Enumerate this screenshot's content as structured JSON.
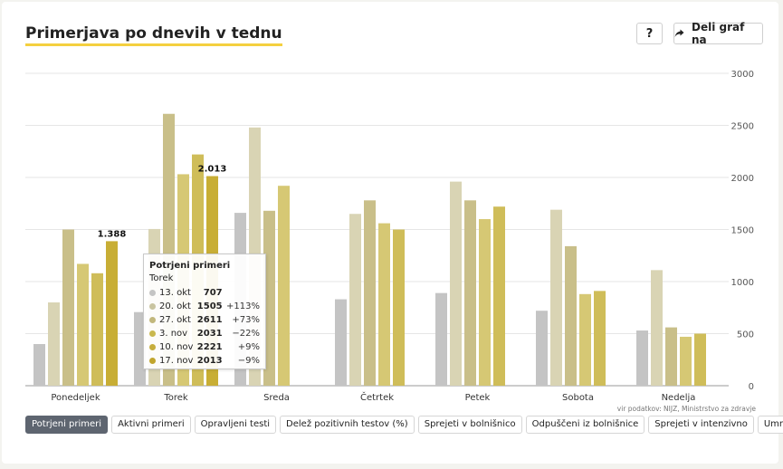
{
  "header": {
    "title": "Primerjava po dnevih v tednu",
    "help_label": "?",
    "share_label": "Deli graf na"
  },
  "source_note": "vir podatkov: NIJZ, Ministrstvo za zdravje",
  "tabs": [
    {
      "label": "Potrjeni primeri",
      "active": true
    },
    {
      "label": "Aktivni primeri",
      "active": false
    },
    {
      "label": "Opravljeni testi",
      "active": false
    },
    {
      "label": "Delež pozitivnih testov (%)",
      "active": false
    },
    {
      "label": "Sprejeti v bolnišnico",
      "active": false
    },
    {
      "label": "Odpuščeni iz bolnišnice",
      "active": false
    },
    {
      "label": "Sprejeti v intenzivno",
      "active": false
    },
    {
      "label": "Umrli",
      "active": false
    }
  ],
  "chart_data": {
    "type": "bar",
    "categories": [
      "Ponedeljek",
      "Torek",
      "Sreda",
      "Četrtek",
      "Petek",
      "Sobota",
      "Nedelja"
    ],
    "ylim": [
      0,
      3000
    ],
    "yticks": [
      "0",
      "500",
      "1000",
      "1500",
      "2000",
      "2500",
      "3000"
    ],
    "grid": true,
    "y_axis_side": "right",
    "series": [
      {
        "name": "13. okt",
        "color": "#c4c4c4",
        "values": [
          400,
          707,
          1660,
          830,
          890,
          720,
          530
        ]
      },
      {
        "name": "20. okt",
        "color": "#d9d4b4",
        "values": [
          800,
          1505,
          2480,
          1650,
          1960,
          1690,
          1110
        ]
      },
      {
        "name": "27. okt",
        "color": "#c9bf89",
        "values": [
          1500,
          2611,
          1680,
          1780,
          1780,
          1340,
          560
        ]
      },
      {
        "name": "3. nov",
        "color": "#d6c874",
        "values": [
          1170,
          2031,
          1920,
          1560,
          1600,
          880,
          470
        ]
      },
      {
        "name": "10. nov",
        "color": "#cfbd59",
        "values": [
          1080,
          2221,
          null,
          1500,
          1720,
          910,
          500
        ]
      },
      {
        "name": "17. nov",
        "color": "#c8ae35",
        "values": [
          1388,
          2013,
          null,
          null,
          null,
          null,
          null
        ]
      }
    ],
    "data_labels": [
      {
        "category": "Ponedeljek",
        "series": "17. nov",
        "text": "1.388"
      },
      {
        "category": "Torek",
        "series": "17. nov",
        "text": "2.013"
      }
    ]
  },
  "tooltip": {
    "title": "Potrjeni primeri",
    "subtitle": "Torek",
    "rows": [
      {
        "date": "13. okt",
        "value": "707",
        "change": "",
        "color": "#c4c4c4"
      },
      {
        "date": "20. okt",
        "value": "1505",
        "change": "+113%",
        "color": "#c9c4a0"
      },
      {
        "date": "27. okt",
        "value": "2611",
        "change": "+73%",
        "color": "#c2b77c"
      },
      {
        "date": "3. nov",
        "value": "2031",
        "change": "−22%",
        "color": "#c9b84e"
      },
      {
        "date": "10. nov",
        "value": "2221",
        "change": "+9%",
        "color": "#c6ad3c"
      },
      {
        "date": "17. nov",
        "value": "2013",
        "change": "−9%",
        "color": "#c1a52e"
      }
    ]
  }
}
